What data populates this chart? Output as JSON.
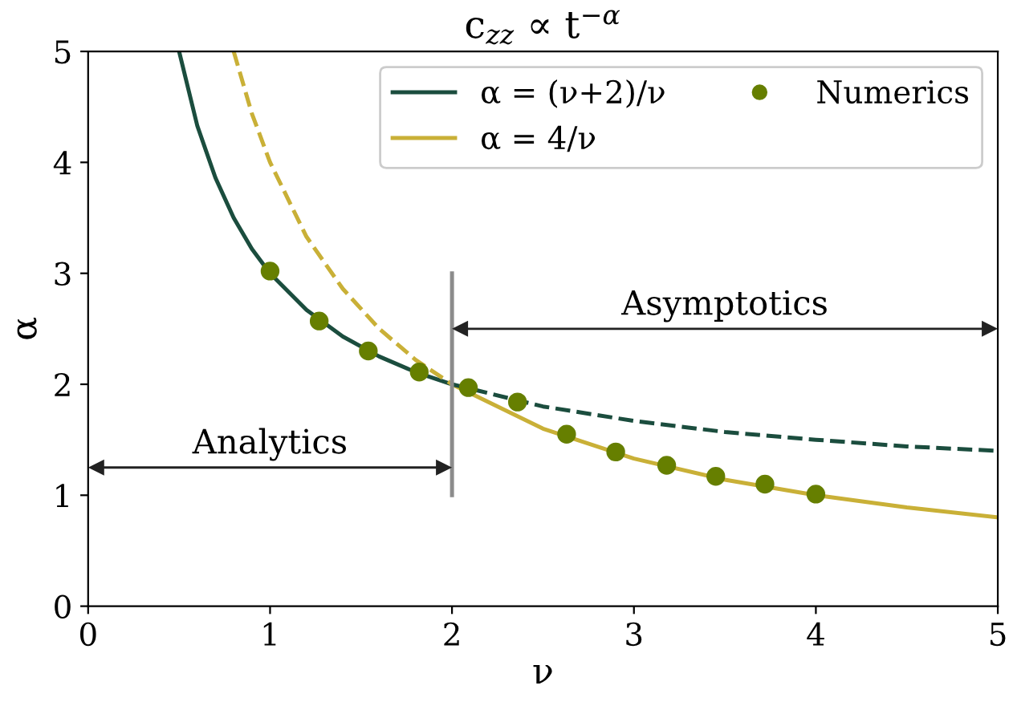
{
  "chart_data": {
    "type": "line",
    "title": "c$_{zz}$ ∝ t$^{−α}$",
    "xlabel": "ν",
    "ylabel": "α",
    "xlim": [
      0,
      5
    ],
    "ylim": [
      0,
      5
    ],
    "xticks": [
      0,
      1,
      2,
      3,
      4,
      5
    ],
    "yticks": [
      0,
      1,
      2,
      3,
      4,
      5
    ],
    "grid": false,
    "legend": "top right",
    "series": [
      {
        "name": "α = (ν+2)/ν",
        "color": "#1b4d3e",
        "line_style": "solid",
        "x": [
          0.5,
          0.6,
          0.7,
          0.8,
          0.9,
          1.0,
          1.2,
          1.4,
          1.6,
          1.8,
          2.0
        ],
        "values": [
          5,
          4.33,
          3.86,
          3.5,
          3.22,
          3,
          2.67,
          2.43,
          2.25,
          2.11,
          2
        ]
      },
      {
        "name": "α = 4/ν",
        "color": "#c9b037",
        "line_style": "solid",
        "x": [
          2,
          2.5,
          3,
          3.5,
          4,
          4.5,
          5
        ],
        "values": [
          2,
          1.6,
          1.33,
          1.14,
          1,
          0.89,
          0.8
        ]
      },
      {
        "name": "Numerics",
        "type": "scatter",
        "marker": "circle",
        "color": "#667f00",
        "x": [
          1.0,
          1.27,
          1.54,
          1.82,
          2.09,
          2.36,
          2.63,
          2.9,
          3.18,
          3.45,
          3.72,
          4.0
        ],
        "values": [
          3.02,
          2.57,
          2.3,
          2.11,
          1.97,
          1.84,
          1.55,
          1.39,
          1.27,
          1.17,
          1.1,
          1.01
        ]
      },
      {
        "color": "#1b4d3e",
        "line_style": "dashed",
        "x": [
          2,
          2.5,
          3,
          3.5,
          4,
          4.5,
          5
        ],
        "values": [
          2,
          1.8,
          1.67,
          1.57,
          1.5,
          1.44,
          1.4
        ]
      },
      {
        "color": "#c9b037",
        "line_style": "dashed",
        "x": [
          0.8,
          0.9,
          1,
          1.2,
          1.4,
          1.6,
          1.8,
          2
        ],
        "values": [
          5,
          4.44,
          4,
          3.33,
          2.86,
          2.5,
          2.22,
          2
        ]
      },
      {
        "color": "#8c8c8c",
        "line_style": "solid",
        "x": [
          2,
          2
        ],
        "values": [
          1,
          3
        ]
      }
    ],
    "annotations": [
      "Analytics",
      "Asymptotics"
    ]
  }
}
